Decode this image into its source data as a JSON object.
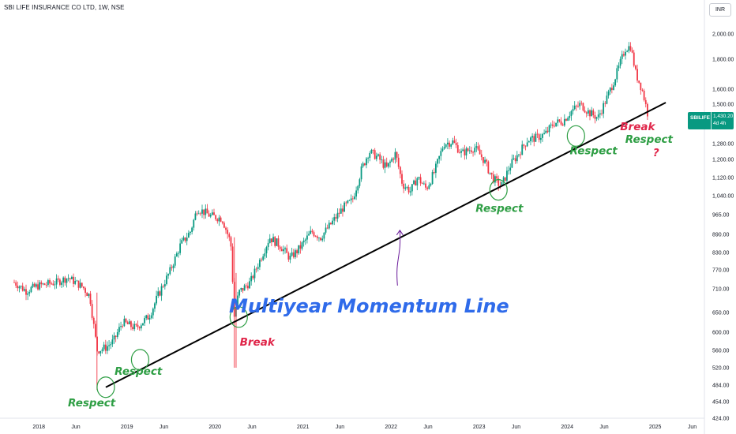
{
  "header": {
    "title": "SBI LIFE INSURANCE CO LTD, 1W, NSE",
    "currency": "INR"
  },
  "price_label": {
    "symbol": "SBILIFE",
    "value": "1,430.20",
    "countdown": "4d 4h"
  },
  "annotations": [
    {
      "text": "Respect",
      "color": "#2e9e44",
      "date": 2018.6,
      "price": 445
    },
    {
      "text": "Respect",
      "color": "#2e9e44",
      "date": 2019.13,
      "price": 505
    },
    {
      "text": "Break",
      "color": "#e0264a",
      "date": 2020.48,
      "price": 570
    },
    {
      "text": "Multiyear Momentum Line",
      "color": "#2f6bea",
      "date": 2021.75,
      "price": 650,
      "big": true
    },
    {
      "text": "Respect",
      "color": "#2e9e44",
      "date": 2023.23,
      "price": 975
    },
    {
      "text": "Respect",
      "color": "#2e9e44",
      "date": 2024.3,
      "price": 1225
    },
    {
      "text": "Break",
      "color": "#e0264a",
      "date": 2024.8,
      "price": 1350
    },
    {
      "text": "Respect",
      "color": "#2e9e44",
      "date": 2024.93,
      "price": 1285
    },
    {
      "text": "?",
      "color": "#e0264a",
      "date": 2025.01,
      "price": 1215
    }
  ],
  "colors": {
    "up": "#089981",
    "down": "#f23645",
    "trendline": "#000000",
    "circle": "#2e9e44",
    "arrow": "#6a1b9a"
  },
  "chart_data": {
    "type": "candlestick",
    "timeframe": "1W",
    "x_ticks": [
      {
        "label": "2018",
        "date": 2018.0
      },
      {
        "label": "Jun",
        "date": 2018.42
      },
      {
        "label": "2019",
        "date": 2019.0
      },
      {
        "label": "Jun",
        "date": 2019.42
      },
      {
        "label": "2020",
        "date": 2020.0
      },
      {
        "label": "Jun",
        "date": 2020.42
      },
      {
        "label": "2021",
        "date": 2021.0
      },
      {
        "label": "Jun",
        "date": 2021.42
      },
      {
        "label": "2022",
        "date": 2022.0
      },
      {
        "label": "Jun",
        "date": 2022.42
      },
      {
        "label": "2023",
        "date": 2023.0
      },
      {
        "label": "Jun",
        "date": 2023.42
      },
      {
        "label": "2024",
        "date": 2024.0
      },
      {
        "label": "Jun",
        "date": 2024.42
      },
      {
        "label": "2025",
        "date": 2025.0
      },
      {
        "label": "Jun",
        "date": 2025.42
      }
    ],
    "y_scale": "log",
    "y_range": [
      424,
      2150
    ],
    "y_ticks": [
      {
        "label": "2,000.00",
        "value": 2000
      },
      {
        "label": "1,800.00",
        "value": 1800
      },
      {
        "label": "1,600.00",
        "value": 1600
      },
      {
        "label": "1,500.00",
        "value": 1500
      },
      {
        "label": "1,280.00",
        "value": 1280
      },
      {
        "label": "1,200.00",
        "value": 1200
      },
      {
        "label": "1,120.00",
        "value": 1120
      },
      {
        "label": "1,040.00",
        "value": 1040
      },
      {
        "label": "965.00",
        "value": 965
      },
      {
        "label": "890.00",
        "value": 890
      },
      {
        "label": "830.00",
        "value": 830
      },
      {
        "label": "770.00",
        "value": 770
      },
      {
        "label": "710.00",
        "value": 710
      },
      {
        "label": "650.00",
        "value": 650
      },
      {
        "label": "600.00",
        "value": 600
      },
      {
        "label": "560.00",
        "value": 560
      },
      {
        "label": "520.00",
        "value": 520
      },
      {
        "label": "484.00",
        "value": 484
      },
      {
        "label": "454.00",
        "value": 454
      },
      {
        "label": "424.00",
        "value": 424
      }
    ],
    "price_path": [
      [
        2017.72,
        730
      ],
      [
        2017.85,
        705
      ],
      [
        2018.0,
        720
      ],
      [
        2018.2,
        730
      ],
      [
        2018.33,
        745
      ],
      [
        2018.5,
        715
      ],
      [
        2018.58,
        690
      ],
      [
        2018.66,
        560
      ],
      [
        2018.75,
        565
      ],
      [
        2018.85,
        580
      ],
      [
        2018.95,
        625
      ],
      [
        2019.1,
        610
      ],
      [
        2019.25,
        640
      ],
      [
        2019.35,
        690
      ],
      [
        2019.48,
        760
      ],
      [
        2019.6,
        850
      ],
      [
        2019.72,
        900
      ],
      [
        2019.8,
        990
      ],
      [
        2019.95,
        960
      ],
      [
        2020.08,
        950
      ],
      [
        2020.18,
        860
      ],
      [
        2020.22,
        640
      ],
      [
        2020.27,
        700
      ],
      [
        2020.4,
        730
      ],
      [
        2020.52,
        810
      ],
      [
        2020.62,
        880
      ],
      [
        2020.75,
        850
      ],
      [
        2020.85,
        810
      ],
      [
        2020.95,
        840
      ],
      [
        2021.1,
        900
      ],
      [
        2021.2,
        880
      ],
      [
        2021.32,
        930
      ],
      [
        2021.45,
        990
      ],
      [
        2021.56,
        1020
      ],
      [
        2021.66,
        1150
      ],
      [
        2021.75,
        1240
      ],
      [
        2021.85,
        1210
      ],
      [
        2021.95,
        1160
      ],
      [
        2022.05,
        1230
      ],
      [
        2022.13,
        1090
      ],
      [
        2022.22,
        1060
      ],
      [
        2022.3,
        1120
      ],
      [
        2022.4,
        1070
      ],
      [
        2022.5,
        1150
      ],
      [
        2022.6,
        1280
      ],
      [
        2022.7,
        1290
      ],
      [
        2022.8,
        1230
      ],
      [
        2022.95,
        1260
      ],
      [
        2023.05,
        1200
      ],
      [
        2023.15,
        1120
      ],
      [
        2023.25,
        1080
      ],
      [
        2023.35,
        1170
      ],
      [
        2023.45,
        1230
      ],
      [
        2023.55,
        1300
      ],
      [
        2023.65,
        1310
      ],
      [
        2023.75,
        1330
      ],
      [
        2023.85,
        1390
      ],
      [
        2023.95,
        1400
      ],
      [
        2024.05,
        1460
      ],
      [
        2024.15,
        1500
      ],
      [
        2024.25,
        1450
      ],
      [
        2024.35,
        1420
      ],
      [
        2024.42,
        1500
      ],
      [
        2024.5,
        1610
      ],
      [
        2024.58,
        1730
      ],
      [
        2024.66,
        1880
      ],
      [
        2024.72,
        1900
      ],
      [
        2024.78,
        1700
      ],
      [
        2024.85,
        1600
      ],
      [
        2024.92,
        1430
      ]
    ],
    "trendline": {
      "from": {
        "date": 2018.76,
        "price": 480
      },
      "to": {
        "date": 2025.12,
        "price": 1510
      }
    },
    "circles": [
      {
        "date": 2018.76,
        "price": 480
      },
      {
        "date": 2019.15,
        "price": 538
      },
      {
        "date": 2020.27,
        "price": 638
      },
      {
        "date": 2023.22,
        "price": 1065
      },
      {
        "date": 2024.1,
        "price": 1320
      }
    ],
    "arrow": {
      "from": {
        "date": 2022.1,
        "price": 720
      },
      "to": {
        "date": 2022.1,
        "price": 905
      }
    }
  }
}
